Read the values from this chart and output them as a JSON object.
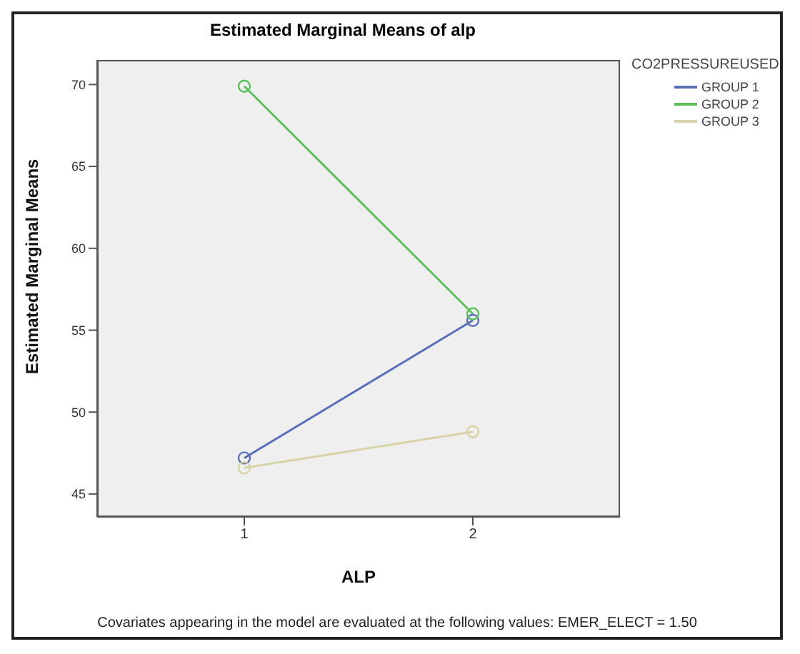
{
  "chart_data": {
    "type": "line",
    "title": "Estimated Marginal Means of alp",
    "xlabel": "ALP",
    "ylabel": "Estimated Marginal Means",
    "legend_title": "CO2PRESSUREUSED",
    "categories": [
      "1",
      "2"
    ],
    "series": [
      {
        "name": "GROUP 1",
        "color": "#5a6fb8",
        "values": [
          47.2,
          55.6
        ]
      },
      {
        "name": "GROUP 2",
        "color": "#5cbf5c",
        "values": [
          69.9,
          56.0
        ]
      },
      {
        "name": "GROUP 3",
        "color": "#d8d4a8",
        "values": [
          46.6,
          48.8
        ]
      }
    ],
    "ylim": [
      43.6,
      71.5
    ],
    "yticks": [
      45,
      50,
      55,
      60,
      65,
      70
    ],
    "grid": false,
    "legend": "top right",
    "marker": "circle",
    "line_style": "solid",
    "annotations": [
      "Covariates appearing in the model are evaluated at the following values: EMER_ELECT = 1.50"
    ]
  }
}
